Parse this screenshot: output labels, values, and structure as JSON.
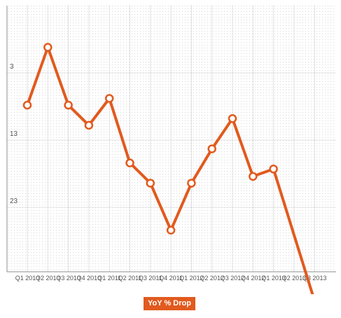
{
  "colors": {
    "series": "#e15a1e",
    "grid": "#b5b5b5",
    "axis": "#8c8c8c",
    "text": "#555555",
    "marker_fill": "#ffffff"
  },
  "chart_data": {
    "type": "line",
    "title": "",
    "xlabel": "",
    "ylabel": "",
    "y_reversed": true,
    "ylim": [
      -7,
      33
    ],
    "y_ticks": [
      3,
      13,
      23
    ],
    "grid": true,
    "legend_placement": "bottom",
    "categories": [
      "Q1 2010",
      "Q2 2010",
      "Q3 2010",
      "Q4 2010",
      "Q1 2011",
      "Q2 2011",
      "Q3 2011",
      "Q4 2011",
      "Q1 2012",
      "Q2 2012",
      "Q3 2012",
      "Q4 2012",
      "Q1 2013",
      "Q2 2013",
      "Q3 2013"
    ],
    "series": [
      {
        "name": "YoY % Drop",
        "values": [
          7.8,
          -0.8,
          7.8,
          10.8,
          6.8,
          16.4,
          19.4,
          26.4,
          19.4,
          14.3,
          9.8,
          18.4,
          17.3,
          null,
          36.9
        ]
      }
    ]
  }
}
